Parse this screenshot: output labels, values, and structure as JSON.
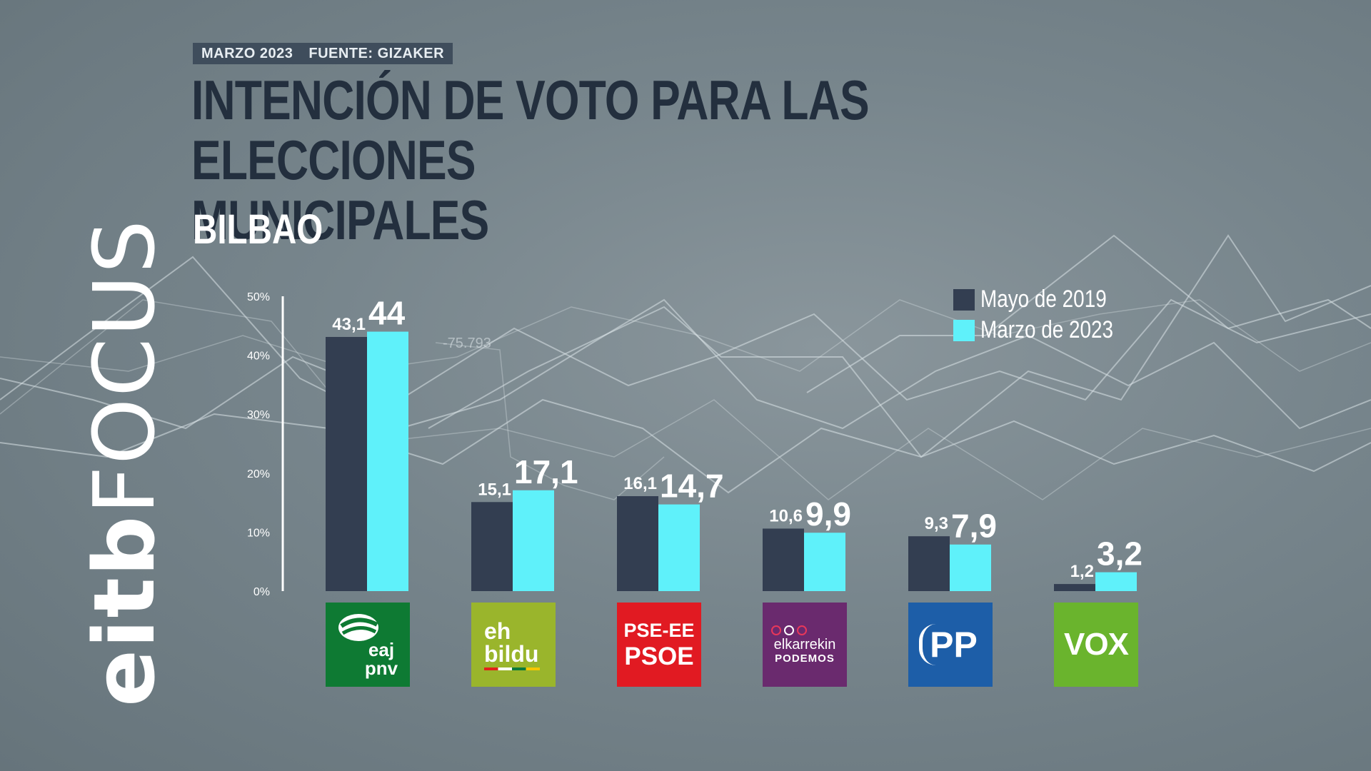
{
  "header": {
    "date_label": "MARZO 2023",
    "source_label": "FUENTE: GIZAKER",
    "title_line1": "INTENCIÓN DE VOTO PARA LAS ELECCIONES",
    "title_line2": "MUNICIPALES",
    "subtitle": "BILBAO"
  },
  "brand": {
    "part1": "eitb",
    "part2": "FOCUS"
  },
  "background_annotation": "-75.793",
  "legend": {
    "items": [
      {
        "label": "Mayo de 2019",
        "color": "#333e51"
      },
      {
        "label": "Marzo de 2023",
        "color": "#5ff1fa"
      }
    ]
  },
  "logos": {
    "pnv": {
      "line1": "eaj",
      "line2": "pnv"
    },
    "bildu": {
      "line1": "eh",
      "line2": "bildu"
    },
    "psoe": {
      "line1": "PSE-EE",
      "line2": "PSOE"
    },
    "podemos": {
      "line1": "elkarrekin",
      "line2": "PODEMOS"
    },
    "pp": {
      "line1": "PP"
    },
    "vox": {
      "line1": "VOX"
    }
  },
  "chart_data": {
    "type": "bar",
    "categories": [
      "EAJ-PNV",
      "EH Bildu",
      "PSE-EE PSOE",
      "Elkarrekin Podemos",
      "PP",
      "VOX"
    ],
    "series": [
      {
        "name": "Mayo de 2019",
        "color": "#333e51",
        "values": [
          43.1,
          15.1,
          16.1,
          10.6,
          9.3,
          1.2
        ],
        "labels": [
          "43,1",
          "15,1",
          "16,1",
          "10,6",
          "9,3",
          "1,2"
        ]
      },
      {
        "name": "Marzo de 2023",
        "color": "#5ff1fa",
        "values": [
          44,
          17.1,
          14.7,
          9.9,
          7.9,
          3.2
        ],
        "labels": [
          "44",
          "17,1",
          "14,7",
          "9,9",
          "7,9",
          "3,2"
        ]
      }
    ],
    "yticks": [
      0,
      10,
      20,
      30,
      40,
      50
    ],
    "ytick_labels": [
      "0%",
      "10%",
      "20%",
      "30%",
      "40%",
      "50%"
    ],
    "ylim": [
      0,
      50
    ],
    "grid": false,
    "legend_position": "top-right"
  }
}
